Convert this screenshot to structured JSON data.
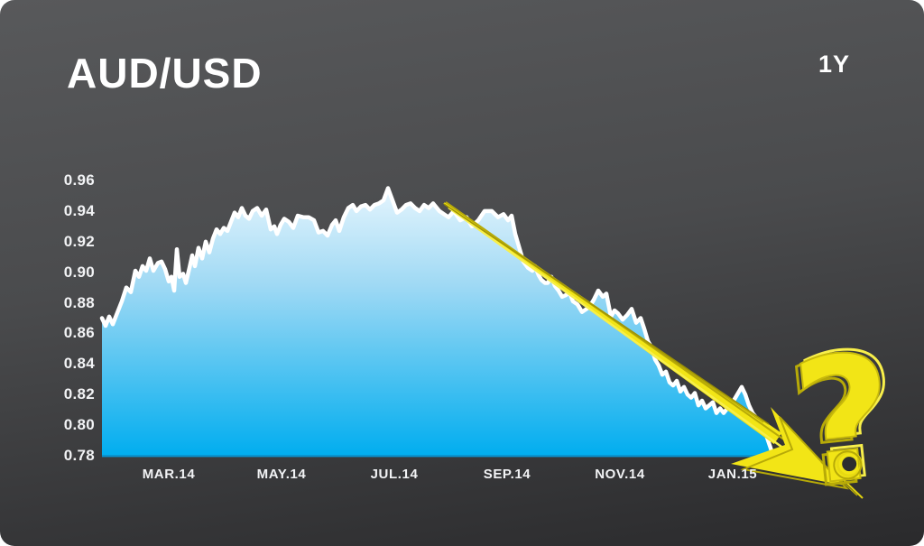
{
  "header": {
    "title": "AUD/USD",
    "range_label": "1Y"
  },
  "colors": {
    "background_top": "#58595b",
    "background_mid": "#4a4b4d",
    "background_bottom": "#2a2a2c",
    "area_top": "#eaf7fe",
    "area_mid": "#9fd9f4",
    "area_bottom": "#00adef",
    "area_base_edge": "#0b8ec9",
    "line": "#ffffff",
    "annotation_yellow": "#f2e516",
    "annotation_yellow_dark": "#b7aa08",
    "annotation_yellow_light": "#f8ef4a",
    "label_text": "#f2f3f5"
  },
  "chart_data": {
    "type": "area",
    "title": "AUD/USD",
    "timeframe": "1Y",
    "xlabel": "",
    "ylabel": "",
    "x_tick_labels": [
      "MAR.14",
      "MAY.14",
      "JUL.14",
      "SEP.14",
      "NOV.14",
      "JAN.15"
    ],
    "y_tick_labels": [
      "0.96",
      "0.94",
      "0.92",
      "0.90",
      "0.88",
      "0.86",
      "0.84",
      "0.82",
      "0.80",
      "0.78"
    ],
    "ylim": [
      0.78,
      0.96
    ],
    "x_range_shown": "FEB.14 to FEB.15",
    "grid": false,
    "legend": false,
    "x_unit": "px along time axis (113=start FEB.14, 857=end FEB.15, ~63px per month)",
    "series": [
      {
        "name": "AUD/USD exchange rate",
        "points": [
          [
            113,
            0.87
          ],
          [
            117,
            0.865
          ],
          [
            121,
            0.871
          ],
          [
            125,
            0.866
          ],
          [
            129,
            0.872
          ],
          [
            135,
            0.881
          ],
          [
            140,
            0.89
          ],
          [
            145,
            0.887
          ],
          [
            150,
            0.901
          ],
          [
            154,
            0.897
          ],
          [
            158,
            0.904
          ],
          [
            162,
            0.901
          ],
          [
            166,
            0.909
          ],
          [
            170,
            0.901
          ],
          [
            175,
            0.906
          ],
          [
            179,
            0.907
          ],
          [
            183,
            0.902
          ],
          [
            187,
            0.894
          ],
          [
            190,
            0.897
          ],
          [
            193,
            0.888
          ],
          [
            196,
            0.915
          ],
          [
            199,
            0.897
          ],
          [
            203,
            0.899
          ],
          [
            206,
            0.893
          ],
          [
            210,
            0.903
          ],
          [
            213,
            0.911
          ],
          [
            216,
            0.904
          ],
          [
            220,
            0.916
          ],
          [
            224,
            0.909
          ],
          [
            228,
            0.92
          ],
          [
            232,
            0.913
          ],
          [
            236,
            0.922
          ],
          [
            240,
            0.928
          ],
          [
            244,
            0.925
          ],
          [
            248,
            0.929
          ],
          [
            252,
            0.927
          ],
          [
            256,
            0.933
          ],
          [
            260,
            0.939
          ],
          [
            264,
            0.936
          ],
          [
            268,
            0.942
          ],
          [
            272,
            0.937
          ],
          [
            276,
            0.935
          ],
          [
            280,
            0.94
          ],
          [
            285,
            0.942
          ],
          [
            290,
            0.937
          ],
          [
            295,
            0.941
          ],
          [
            300,
            0.928
          ],
          [
            304,
            0.93
          ],
          [
            307,
            0.925
          ],
          [
            311,
            0.931
          ],
          [
            315,
            0.935
          ],
          [
            320,
            0.933
          ],
          [
            325,
            0.929
          ],
          [
            330,
            0.937
          ],
          [
            336,
            0.936
          ],
          [
            342,
            0.936
          ],
          [
            348,
            0.934
          ],
          [
            353,
            0.926
          ],
          [
            358,
            0.927
          ],
          [
            363,
            0.924
          ],
          [
            368,
            0.931
          ],
          [
            372,
            0.934
          ],
          [
            376,
            0.927
          ],
          [
            381,
            0.936
          ],
          [
            386,
            0.942
          ],
          [
            391,
            0.944
          ],
          [
            395,
            0.94
          ],
          [
            400,
            0.943
          ],
          [
            405,
            0.944
          ],
          [
            410,
            0.941
          ],
          [
            415,
            0.944
          ],
          [
            420,
            0.945
          ],
          [
            425,
            0.947
          ],
          [
            430,
            0.955
          ],
          [
            435,
            0.947
          ],
          [
            440,
            0.939
          ],
          [
            445,
            0.941
          ],
          [
            450,
            0.944
          ],
          [
            455,
            0.945
          ],
          [
            460,
            0.942
          ],
          [
            465,
            0.94
          ],
          [
            470,
            0.944
          ],
          [
            475,
            0.942
          ],
          [
            480,
            0.945
          ],
          [
            487,
            0.94
          ],
          [
            492,
            0.938
          ],
          [
            497,
            0.936
          ],
          [
            503,
            0.94
          ],
          [
            510,
            0.934
          ],
          [
            517,
            0.936
          ],
          [
            523,
            0.93
          ],
          [
            530,
            0.934
          ],
          [
            537,
            0.94
          ],
          [
            545,
            0.94
          ],
          [
            552,
            0.936
          ],
          [
            558,
            0.938
          ],
          [
            563,
            0.934
          ],
          [
            567,
            0.937
          ],
          [
            571,
            0.925
          ],
          [
            575,
            0.917
          ],
          [
            580,
            0.907
          ],
          [
            585,
            0.903
          ],
          [
            590,
            0.901
          ],
          [
            593,
            0.904
          ],
          [
            597,
            0.898
          ],
          [
            600,
            0.895
          ],
          [
            604,
            0.893
          ],
          [
            607,
            0.893
          ],
          [
            611,
            0.897
          ],
          [
            615,
            0.891
          ],
          [
            619,
            0.888
          ],
          [
            623,
            0.884
          ],
          [
            627,
            0.885
          ],
          [
            631,
            0.887
          ],
          [
            635,
            0.881
          ],
          [
            640,
            0.879
          ],
          [
            645,
            0.874
          ],
          [
            650,
            0.876
          ],
          [
            654,
            0.878
          ],
          [
            658,
            0.882
          ],
          [
            663,
            0.888
          ],
          [
            668,
            0.884
          ],
          [
            672,
            0.886
          ],
          [
            677,
            0.871
          ],
          [
            681,
            0.875
          ],
          [
            685,
            0.873
          ],
          [
            690,
            0.869
          ],
          [
            695,
            0.872
          ],
          [
            700,
            0.876
          ],
          [
            705,
            0.867
          ],
          [
            710,
            0.87
          ],
          [
            714,
            0.863
          ],
          [
            718,
            0.855
          ],
          [
            722,
            0.851
          ],
          [
            726,
            0.843
          ],
          [
            730,
            0.839
          ],
          [
            734,
            0.833
          ],
          [
            738,
            0.835
          ],
          [
            742,
            0.828
          ],
          [
            746,
            0.826
          ],
          [
            750,
            0.829
          ],
          [
            754,
            0.822
          ],
          [
            758,
            0.825
          ],
          [
            762,
            0.82
          ],
          [
            766,
            0.818
          ],
          [
            770,
            0.821
          ],
          [
            774,
            0.813
          ],
          [
            778,
            0.816
          ],
          [
            782,
            0.811
          ],
          [
            786,
            0.813
          ],
          [
            790,
            0.815
          ],
          [
            794,
            0.808
          ],
          [
            798,
            0.811
          ],
          [
            802,
            0.808
          ],
          [
            806,
            0.811
          ],
          [
            810,
            0.812
          ],
          [
            814,
            0.817
          ],
          [
            818,
            0.821
          ],
          [
            822,
            0.825
          ],
          [
            826,
            0.82
          ],
          [
            830,
            0.813
          ],
          [
            834,
            0.808
          ],
          [
            838,
            0.805
          ],
          [
            842,
            0.802
          ],
          [
            846,
            0.797
          ],
          [
            850,
            0.792
          ],
          [
            854,
            0.785
          ],
          [
            857,
            0.779
          ]
        ]
      }
    ],
    "annotations": [
      {
        "type": "arrow",
        "description": "hand-drawn yellow marker arrow sloping down from ~0.945 (AUG.14) to ~0.78 (FEB.15)",
        "from_value": 0.945,
        "to_value": 0.78,
        "color": "#f2e516"
      },
      {
        "type": "question-mark",
        "glyph": "?",
        "description": "hand-drawn sketchy yellow question mark at lower right, where the arrow points",
        "color": "#f2e41c"
      }
    ]
  }
}
